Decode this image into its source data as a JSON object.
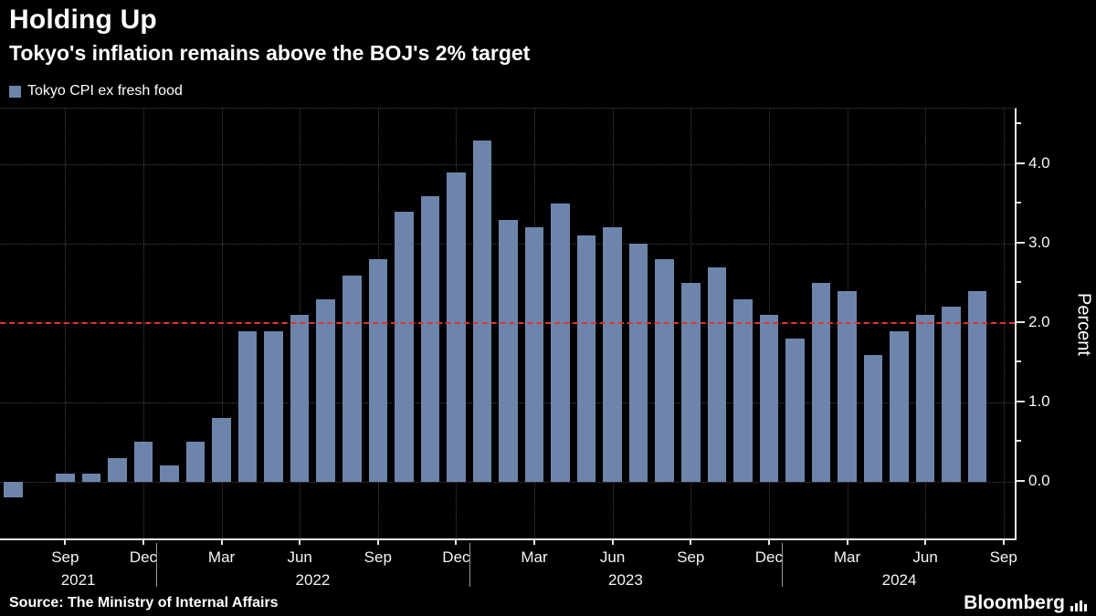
{
  "header": {
    "title": "Holding Up",
    "subtitle": "Tokyo's inflation remains above the BOJ's 2% target"
  },
  "legend": {
    "label": "Tokyo CPI ex fresh food",
    "swatch_color": "#6e85ab"
  },
  "y_axis": {
    "title": "Percent"
  },
  "footer": {
    "source": "Source: The Ministry of Internal Affairs",
    "brand": "Bloomberg"
  },
  "chart_data": {
    "type": "bar",
    "title": "Holding Up",
    "subtitle": "Tokyo's inflation remains above the BOJ's 2% target",
    "series_name": "Tokyo CPI ex fresh food",
    "ylabel": "Percent",
    "xlabel": "",
    "x": [
      "Jul 2021",
      "Aug 2021",
      "Sep 2021",
      "Oct 2021",
      "Nov 2021",
      "Dec 2021",
      "Jan 2022",
      "Feb 2022",
      "Mar 2022",
      "Apr 2022",
      "May 2022",
      "Jun 2022",
      "Jul 2022",
      "Aug 2022",
      "Sep 2022",
      "Oct 2022",
      "Nov 2022",
      "Dec 2022",
      "Jan 2023",
      "Feb 2023",
      "Mar 2023",
      "Apr 2023",
      "May 2023",
      "Jun 2023",
      "Jul 2023",
      "Aug 2023",
      "Sep 2023",
      "Oct 2023",
      "Nov 2023",
      "Dec 2023",
      "Jan 2024",
      "Feb 2024",
      "Mar 2024",
      "Apr 2024",
      "May 2024",
      "Jun 2024",
      "Jul 2024",
      "Aug 2024"
    ],
    "values": [
      -0.2,
      0.0,
      0.1,
      0.1,
      0.3,
      0.5,
      0.2,
      0.5,
      0.8,
      1.9,
      1.9,
      2.1,
      2.3,
      2.6,
      2.8,
      3.4,
      3.6,
      3.9,
      4.3,
      3.3,
      3.2,
      3.5,
      3.1,
      3.2,
      3.0,
      2.8,
      2.5,
      2.7,
      2.3,
      2.1,
      1.8,
      2.5,
      2.4,
      1.6,
      1.9,
      2.1,
      2.2,
      2.4
    ],
    "x_axis_end": "Sep 2024",
    "total_slots": 39,
    "ylim": [
      -0.75,
      4.7
    ],
    "bar_color": "#6e85ab",
    "grid": true,
    "legend_position": "top-left",
    "y_ticks": [
      {
        "value": 0,
        "label": "0.0"
      },
      {
        "value": 1,
        "label": "1.0"
      },
      {
        "value": 2,
        "label": "2.0"
      },
      {
        "value": 3,
        "label": "3.0"
      },
      {
        "value": 4,
        "label": "4.0"
      }
    ],
    "y_minor_ticks": [
      0.5,
      1.5,
      2.5,
      3.5,
      4.5
    ],
    "x_ticks": [
      {
        "index": 2,
        "label": "Sep"
      },
      {
        "index": 5,
        "label": "Dec"
      },
      {
        "index": 8,
        "label": "Mar"
      },
      {
        "index": 11,
        "label": "Jun"
      },
      {
        "index": 14,
        "label": "Sep"
      },
      {
        "index": 17,
        "label": "Dec"
      },
      {
        "index": 20,
        "label": "Mar"
      },
      {
        "index": 23,
        "label": "Jun"
      },
      {
        "index": 26,
        "label": "Sep"
      },
      {
        "index": 29,
        "label": "Dec"
      },
      {
        "index": 32,
        "label": "Mar"
      },
      {
        "index": 35,
        "label": "Jun"
      },
      {
        "index": 38,
        "label": "Sep"
      }
    ],
    "year_labels": [
      {
        "index": 2.5,
        "label": "2021"
      },
      {
        "index": 11.5,
        "label": "2022"
      },
      {
        "index": 23.5,
        "label": "2023"
      },
      {
        "index": 34,
        "label": "2024"
      }
    ],
    "year_separators": [
      6,
      18,
      30
    ],
    "reference_line": {
      "value": 2.0,
      "color": "#de352e",
      "style": "dashed"
    }
  }
}
